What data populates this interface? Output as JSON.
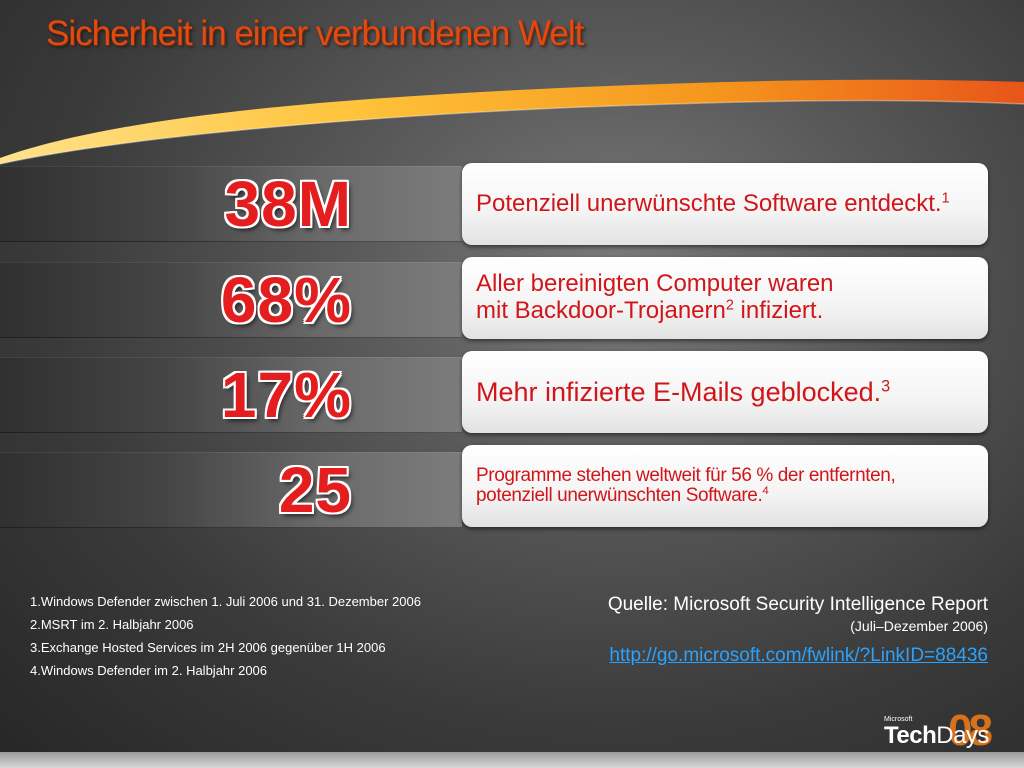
{
  "slide": {
    "title": "Sicherheit in einer verbundenen Welt"
  },
  "stats": [
    {
      "value": "38M",
      "text": "Potenziell unerwünschte Software entdeckt.",
      "ref": "1"
    },
    {
      "value": "68%",
      "text_line1": "Aller bereinigten Computer waren",
      "text_line2a": "mit Backdoor-Trojanern",
      "ref": "2",
      "text_line2b": " infiziert."
    },
    {
      "value": "17%",
      "text": "Mehr infizierte E-Mails geblocked.",
      "ref": "3"
    },
    {
      "value": "25",
      "text": "Programme stehen weltweit für 56 % der entfernten, potenziell unerwünschten Software.",
      "ref": "4"
    }
  ],
  "footnotes": [
    "1.Windows Defender zwischen 1. Juli 2006 und 31. Dezember 2006",
    "2.MSRT im 2. Halbjahr 2006",
    "3.Exchange Hosted Services im 2H 2006 gegenüber 1H 2006",
    "4.Windows Defender im 2. Halbjahr 2006"
  ],
  "source": {
    "label": "Quelle: Microsoft Security Intelligence Report",
    "period": "(Juli–Dezember  2006)",
    "link": "http://go.microsoft.com/fwlink/?LinkID=88436"
  },
  "logo": {
    "brand": "Microsoft",
    "name_a": "Tech",
    "name_b": "Days",
    "year": "08"
  },
  "colors": {
    "title": "#e24a12",
    "stat": "#e41e1e",
    "card_text": "#d0161a",
    "link": "#29a3ff",
    "swoosh": "#f3a21a"
  }
}
